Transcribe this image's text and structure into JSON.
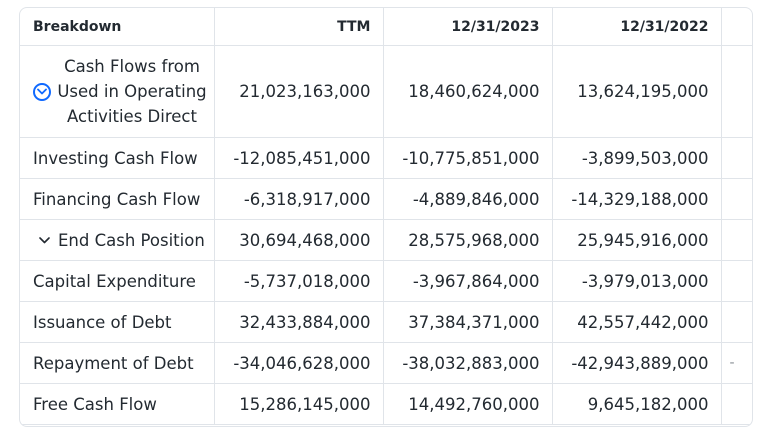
{
  "table": {
    "headers": {
      "breakdown": "Breakdown",
      "ttm": "TTM",
      "d1": "12/31/2023",
      "d2": "12/31/2022"
    },
    "rows": [
      {
        "label": "Cash Flows from Used in Operating Activities Direct",
        "label_line1": "Cash Flows from",
        "label_line2": "Used in Operating",
        "label_line3": "Activities Direct",
        "ttm": "21,023,163,000",
        "d1": "18,460,624,000",
        "d2": "13,624,195,000",
        "expandable": true,
        "icon": "chevron-down-circle-icon"
      },
      {
        "label": "Investing Cash Flow",
        "ttm": "-12,085,451,000",
        "d1": "-10,775,851,000",
        "d2": "-3,899,503,000"
      },
      {
        "label": "Financing Cash Flow",
        "ttm": "-6,318,917,000",
        "d1": "-4,889,846,000",
        "d2": "-14,329,188,000"
      },
      {
        "label": "End Cash Position",
        "ttm": "30,694,468,000",
        "d1": "28,575,968,000",
        "d2": "25,945,916,000",
        "expandable": true,
        "icon": "chevron-down-icon"
      },
      {
        "label": "Capital Expenditure",
        "ttm": "-5,737,018,000",
        "d1": "-3,967,864,000",
        "d2": "-3,979,013,000"
      },
      {
        "label": "Issuance of Debt",
        "ttm": "32,433,884,000",
        "d1": "37,384,371,000",
        "d2": "42,557,442,000"
      },
      {
        "label": "Repayment of Debt",
        "ttm": "-34,046,628,000",
        "d1": "-38,032,883,000",
        "d2": "-42,943,889,000",
        "partial_next": "-"
      },
      {
        "label": "Free Cash Flow",
        "ttm": "15,286,145,000",
        "d1": "14,492,760,000",
        "d2": "9,645,182,000"
      }
    ]
  },
  "colors": {
    "border": "#e0e4e9",
    "text": "#232a31",
    "accent": "#0f69ff"
  }
}
